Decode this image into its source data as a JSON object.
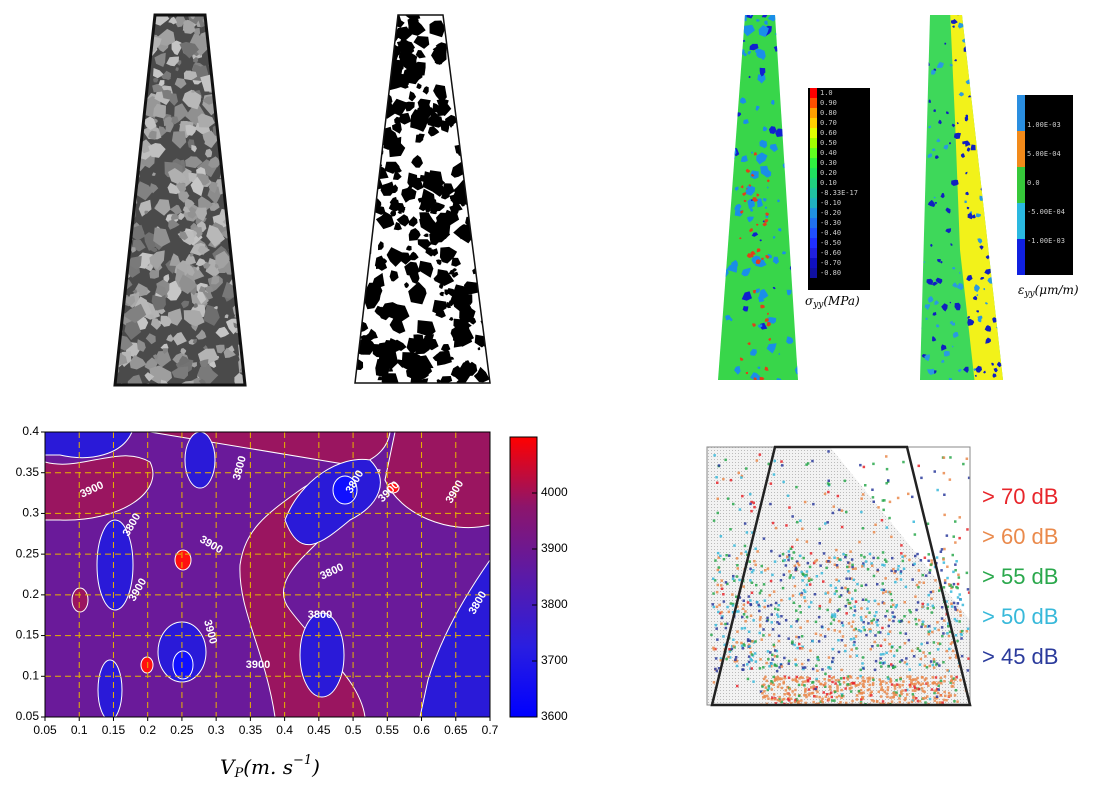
{
  "chart_data": {
    "type": "contour",
    "xlim": [
      0.05,
      0.7
    ],
    "ylim": [
      0.05,
      0.4
    ],
    "xticks": [
      0.05,
      0.1,
      0.15,
      0.2,
      0.25,
      0.3,
      0.35,
      0.4,
      0.45,
      0.5,
      0.55,
      0.6,
      0.65,
      0.7
    ],
    "yticks": [
      0.05,
      0.1,
      0.15,
      0.2,
      0.25,
      0.3,
      0.35,
      0.4
    ],
    "grid": true,
    "grid_color": "#e8b400",
    "xlabel_parts": [
      "V",
      "P",
      "(m. s",
      "−1",
      ")"
    ],
    "colorbar": {
      "clim": [
        3600,
        4100
      ],
      "ticks": [
        3600,
        3700,
        3800,
        3900,
        4000
      ],
      "colors": [
        "#0000ff",
        "#2a1ee0",
        "#5a1aa8",
        "#8c156c",
        "#ff0000"
      ]
    },
    "contour_labels": [
      3900,
      3800,
      3800,
      3900,
      3900,
      3800,
      3800,
      3900,
      3900,
      3800,
      3900,
      3900,
      3800
    ]
  },
  "figure": {
    "stress_colorbar": {
      "labels": [
        "1.0",
        "0.90",
        "0.80",
        "0.70",
        "0.60",
        "0.50",
        "0.40",
        "0.30",
        "0.20",
        "0.10",
        "-8.33E-17",
        "-0.10",
        "-0.20",
        "-0.30",
        "-0.40",
        "-0.50",
        "-0.60",
        "-0.70",
        "-0.80"
      ],
      "title": [
        "σ",
        "yy",
        "(MPa)"
      ]
    },
    "strain_colorbar": {
      "labels": [
        "1.00E-03",
        "5.00E-04",
        "0.0",
        "-5.00E-04",
        "-1.00E-03"
      ],
      "title": [
        "ε",
        "yy",
        "(μm/m)"
      ]
    },
    "acoustic_legend": [
      {
        "label": "> 70 dB",
        "color": "#e8262b"
      },
      {
        "label": "> 60 dB",
        "color": "#ea8a4c"
      },
      {
        "label": "> 55 dB",
        "color": "#2aa84c"
      },
      {
        "label": "> 50 dB",
        "color": "#38b9da"
      },
      {
        "label": "> 45 dB",
        "color": "#2b3b9c"
      }
    ]
  }
}
